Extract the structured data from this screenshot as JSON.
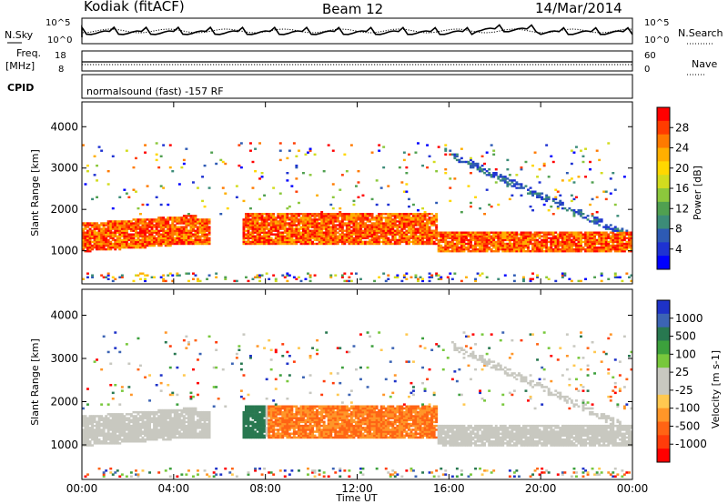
{
  "header": {
    "station": "Kodiak (fitACF)",
    "beam": "Beam 12",
    "date": "14/Mar/2014"
  },
  "summary": {
    "nsky_label": "N.Sky",
    "nsearch_label": "N.Search",
    "nsky_ticks": [
      "10^5",
      "10^0"
    ],
    "nsearch_ticks": [
      "10^5",
      "10^0"
    ],
    "freq_label_1": "Freq.",
    "freq_label_2": "[MHz]",
    "freq_ticks": [
      "18",
      "8"
    ],
    "nave_label": "Nave",
    "nave_ticks": [
      "60",
      "0"
    ],
    "cpid_label": "CPID",
    "cpid_value": "normalsound (fast) -157 RF"
  },
  "chart_data": [
    {
      "type": "heatmap",
      "quantity": "Power",
      "ylabel": "Slant Range [km]",
      "ylim": [
        200,
        4600
      ],
      "yticks": [
        "4000",
        "3000",
        "2000",
        "1000"
      ],
      "xlabel": "Time UT",
      "xlim_hours": [
        0,
        24
      ],
      "colorbar": {
        "label": "Power [dB]",
        "ticks": [
          "28",
          "24",
          "20",
          "16",
          "12",
          "8",
          "4"
        ],
        "colors": [
          "#ff0000",
          "#ff3c00",
          "#ff7a00",
          "#ffaf00",
          "#ffd700",
          "#d2dc1e",
          "#8cc83c",
          "#50a050",
          "#3c8c78",
          "#2d5ab4",
          "#1e32d2",
          "#0000ff"
        ]
      }
    },
    {
      "type": "heatmap",
      "quantity": "Velocity",
      "ylabel": "Slant Range [km]",
      "ylim": [
        200,
        4600
      ],
      "yticks": [
        "4000",
        "3000",
        "2000",
        "1000"
      ],
      "xlabel": "Time UT",
      "xlim_hours": [
        0,
        24
      ],
      "xticks": [
        "00:00",
        "04:00",
        "08:00",
        "12:00",
        "16:00",
        "20:00",
        "00:00"
      ],
      "colorbar": {
        "label": "Velocity [m s-1]",
        "ticks": [
          "1000",
          "500",
          "100",
          "25",
          "-25",
          "-100",
          "-500",
          "-1000"
        ],
        "colors": [
          "#1e32c8",
          "#3c64b4",
          "#287850",
          "#3ca03c",
          "#78c83c",
          "#c8c8c0",
          "#c8c8c0",
          "#ffc850",
          "#ff9628",
          "#ff6414",
          "#ff3c0a",
          "#ff0000"
        ]
      }
    }
  ]
}
